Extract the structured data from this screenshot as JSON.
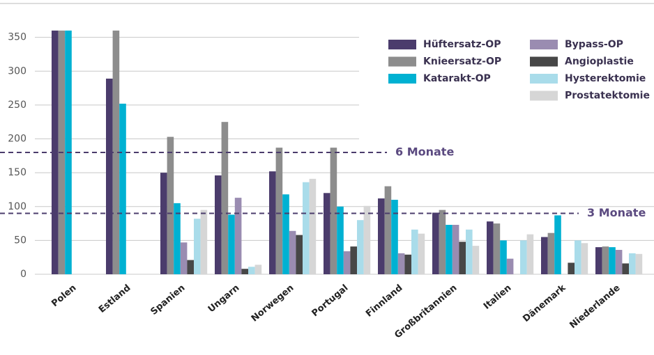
{
  "chart_data": {
    "type": "bar",
    "categories": [
      "Polen",
      "Estland",
      "Spanien",
      "Ungarn",
      "Norwegen",
      "Portugal",
      "Finnland",
      "Großbritannien",
      "Italien",
      "Dänemark",
      "Niederlande"
    ],
    "series": [
      {
        "name": "Hüftersatz-OP",
        "color": "#4b3c6c",
        "values": [
          360,
          289,
          150,
          146,
          152,
          120,
          112,
          91,
          78,
          55,
          40
        ]
      },
      {
        "name": "Knieersatz-OP",
        "color": "#8d8d8d",
        "values": [
          360,
          360,
          203,
          225,
          187,
          187,
          130,
          95,
          75,
          61,
          41
        ]
      },
      {
        "name": "Katarakt-OP",
        "color": "#00b1d2",
        "values": [
          360,
          252,
          105,
          88,
          118,
          100,
          110,
          73,
          50,
          87,
          40
        ]
      },
      {
        "name": "Bypass-OP",
        "color": "#9a8cb1",
        "values": [
          null,
          null,
          47,
          113,
          64,
          34,
          31,
          73,
          23,
          null,
          36
        ]
      },
      {
        "name": "Angioplastie",
        "color": "#474747",
        "values": [
          null,
          null,
          21,
          8,
          58,
          41,
          29,
          48,
          null,
          17,
          16
        ]
      },
      {
        "name": "Hysterektomie",
        "color": "#a9dcea",
        "values": [
          null,
          null,
          82,
          11,
          136,
          80,
          66,
          66,
          50,
          50,
          31
        ]
      },
      {
        "name": "Prostatektomie",
        "color": "#d6d6d6",
        "values": [
          null,
          null,
          95,
          14,
          141,
          101,
          60,
          42,
          59,
          46,
          30
        ]
      }
    ],
    "reference_lines": [
      {
        "value": 180,
        "label": "6 Monate"
      },
      {
        "value": 90,
        "label": "3 Monate"
      }
    ],
    "ylim": [
      0,
      400
    ],
    "yticks": [
      0,
      50,
      100,
      150,
      200,
      250,
      300,
      350
    ],
    "grid": true
  }
}
